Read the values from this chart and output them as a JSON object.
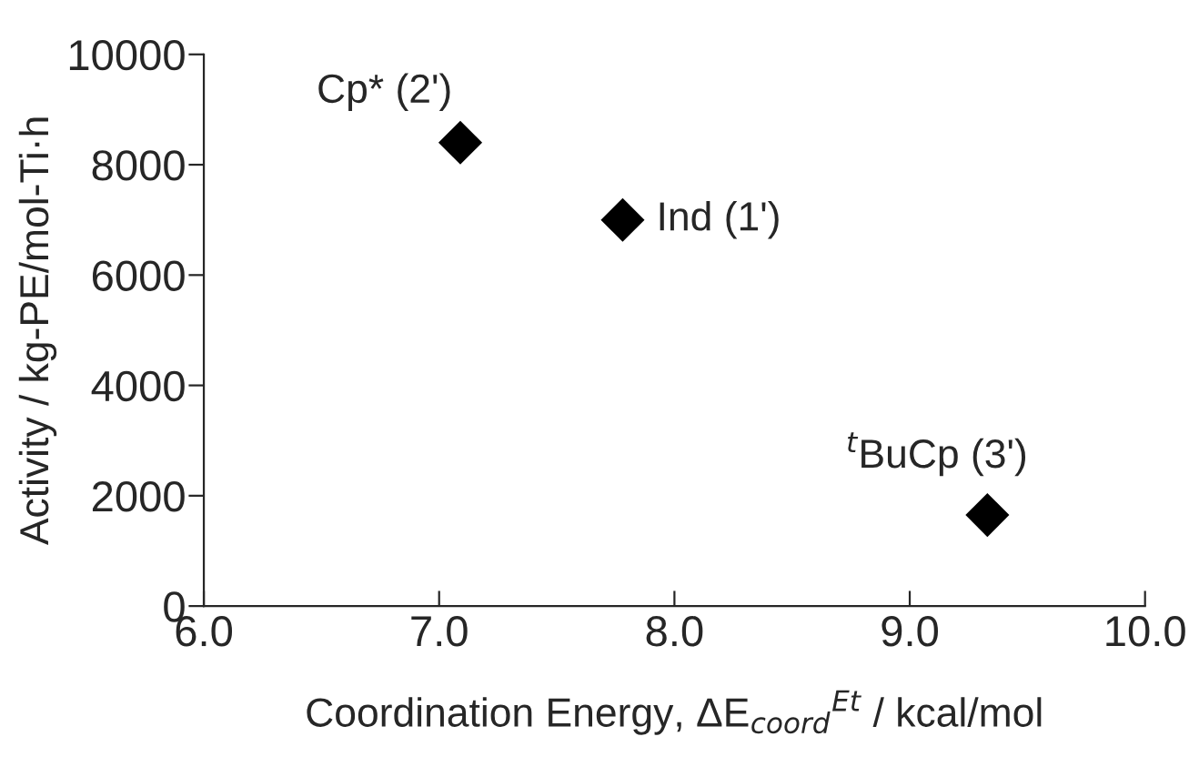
{
  "chart_data": {
    "type": "scatter",
    "xlabel": "Coordination Energy, ΔE$_{coord}$$^{Et}$ / kcal/mol",
    "ylabel": "Activity / kg-PE/mol-Ti·h",
    "x": [
      7.09,
      7.78,
      9.33
    ],
    "series": [
      {
        "color": "#000000",
        "values": [
          8400,
          7000,
          1650
        ]
      }
    ],
    "marker": "diamond",
    "xlim": [
      6.0,
      10.0
    ],
    "xticks": [
      {
        "value": 6.0,
        "label": "6.0"
      },
      {
        "value": 7.0,
        "label": "7.0"
      },
      {
        "value": 8.0,
        "label": "8.0"
      },
      {
        "value": 9.0,
        "label": "9.0"
      },
      {
        "value": 10.0,
        "label": "10.0"
      }
    ],
    "ylim": [
      0,
      10000
    ],
    "yticks": [
      0,
      2000,
      4000,
      6000,
      8000,
      10000
    ],
    "annotations": [
      {
        "text": "Cp* (2')",
        "x": 7.09,
        "y": 8400
      },
      {
        "text": "Ind (1')",
        "x": 7.78,
        "y": 7000
      },
      {
        "text": "$^{t}$BuCp (3')",
        "x": 9.33,
        "y": 1650
      }
    ]
  }
}
